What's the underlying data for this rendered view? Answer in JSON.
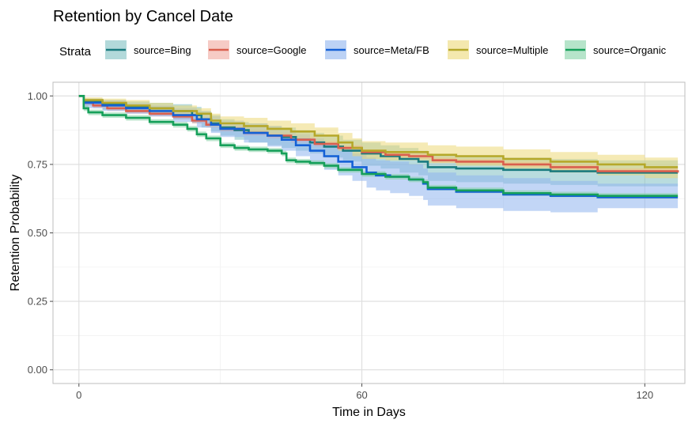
{
  "chart_data": {
    "type": "line",
    "step": true,
    "title": "Retention by Cancel Date",
    "xlabel": "Time in Days",
    "ylabel": "Retention Probability",
    "xlim": [
      -5.5,
      128.5
    ],
    "ylim": [
      -0.05,
      1.05
    ],
    "xticks": [
      0,
      60,
      120
    ],
    "yticks": [
      0.0,
      0.25,
      0.5,
      0.75,
      1.0
    ],
    "ytick_labels": [
      "0.00",
      "0.25",
      "0.50",
      "0.75",
      "1.00"
    ],
    "grid": true,
    "legend": {
      "title": "Strata",
      "position": "top"
    },
    "series": [
      {
        "name": "source=Bing",
        "color": "#1a7b7f",
        "band_color": "#7fbfc2",
        "x": [
          0,
          1,
          5,
          10,
          15,
          20,
          24,
          26,
          28,
          30,
          33,
          36,
          40,
          43,
          46,
          49,
          52,
          56,
          60,
          64,
          68,
          72,
          74,
          80,
          90,
          100,
          110,
          127
        ],
        "y": [
          1.0,
          0.98,
          0.97,
          0.96,
          0.955,
          0.945,
          0.93,
          0.915,
          0.9,
          0.885,
          0.875,
          0.865,
          0.855,
          0.85,
          0.84,
          0.83,
          0.815,
          0.8,
          0.79,
          0.78,
          0.77,
          0.76,
          0.74,
          0.735,
          0.73,
          0.725,
          0.72,
          0.72
        ],
        "lower": [
          1.0,
          0.965,
          0.95,
          0.94,
          0.93,
          0.915,
          0.9,
          0.885,
          0.87,
          0.855,
          0.84,
          0.83,
          0.82,
          0.81,
          0.8,
          0.79,
          0.775,
          0.76,
          0.745,
          0.735,
          0.72,
          0.71,
          0.69,
          0.685,
          0.68,
          0.675,
          0.67,
          0.67
        ],
        "upper": [
          1.0,
          0.99,
          0.985,
          0.98,
          0.975,
          0.97,
          0.96,
          0.945,
          0.93,
          0.915,
          0.905,
          0.9,
          0.89,
          0.885,
          0.875,
          0.865,
          0.855,
          0.84,
          0.83,
          0.82,
          0.81,
          0.8,
          0.785,
          0.78,
          0.775,
          0.77,
          0.765,
          0.765
        ]
      },
      {
        "name": "source=Google",
        "color": "#d95f4e",
        "band_color": "#f0a89e",
        "x": [
          0,
          1,
          3,
          6,
          10,
          15,
          20,
          24,
          27,
          30,
          35,
          40,
          45,
          50,
          55,
          60,
          65,
          70,
          75,
          80,
          90,
          100,
          110,
          127
        ],
        "y": [
          1.0,
          0.975,
          0.965,
          0.955,
          0.945,
          0.935,
          0.925,
          0.91,
          0.895,
          0.88,
          0.865,
          0.855,
          0.84,
          0.825,
          0.81,
          0.795,
          0.785,
          0.78,
          0.765,
          0.76,
          0.75,
          0.74,
          0.725,
          0.72
        ],
        "lower": [
          1.0,
          0.965,
          0.955,
          0.945,
          0.935,
          0.925,
          0.915,
          0.9,
          0.885,
          0.87,
          0.855,
          0.845,
          0.83,
          0.815,
          0.8,
          0.785,
          0.775,
          0.77,
          0.755,
          0.75,
          0.74,
          0.73,
          0.715,
          0.71
        ],
        "upper": [
          1.0,
          0.985,
          0.975,
          0.965,
          0.955,
          0.945,
          0.935,
          0.92,
          0.905,
          0.89,
          0.875,
          0.865,
          0.85,
          0.835,
          0.82,
          0.805,
          0.795,
          0.79,
          0.775,
          0.77,
          0.76,
          0.75,
          0.735,
          0.73
        ]
      },
      {
        "name": "source=Meta/FB",
        "color": "#1460d6",
        "band_color": "#8fb4ef",
        "x": [
          0,
          1,
          5,
          10,
          15,
          20,
          25,
          28,
          30,
          35,
          40,
          43,
          46,
          49,
          52,
          55,
          58,
          61,
          63,
          66,
          70,
          73,
          74,
          80,
          90,
          100,
          110,
          127
        ],
        "y": [
          1.0,
          0.975,
          0.965,
          0.955,
          0.945,
          0.93,
          0.915,
          0.895,
          0.88,
          0.865,
          0.855,
          0.84,
          0.82,
          0.8,
          0.78,
          0.76,
          0.74,
          0.72,
          0.71,
          0.705,
          0.695,
          0.68,
          0.66,
          0.65,
          0.64,
          0.635,
          0.63,
          0.63
        ],
        "lower": [
          1.0,
          0.955,
          0.945,
          0.935,
          0.925,
          0.905,
          0.885,
          0.865,
          0.85,
          0.83,
          0.815,
          0.8,
          0.78,
          0.755,
          0.73,
          0.71,
          0.69,
          0.665,
          0.655,
          0.645,
          0.635,
          0.62,
          0.6,
          0.59,
          0.58,
          0.575,
          0.59,
          0.59
        ],
        "upper": [
          1.0,
          0.99,
          0.985,
          0.975,
          0.965,
          0.955,
          0.945,
          0.925,
          0.91,
          0.9,
          0.89,
          0.875,
          0.86,
          0.845,
          0.83,
          0.81,
          0.79,
          0.775,
          0.765,
          0.76,
          0.75,
          0.735,
          0.72,
          0.71,
          0.7,
          0.69,
          0.68,
          0.68
        ]
      },
      {
        "name": "source=Multiple",
        "color": "#b5a82a",
        "band_color": "#ecd978",
        "x": [
          0,
          1,
          5,
          10,
          15,
          20,
          25,
          28,
          30,
          35,
          40,
          45,
          50,
          55,
          58,
          60,
          65,
          74,
          80,
          90,
          100,
          110,
          120,
          127
        ],
        "y": [
          1.0,
          0.985,
          0.975,
          0.965,
          0.955,
          0.945,
          0.935,
          0.91,
          0.9,
          0.89,
          0.88,
          0.87,
          0.855,
          0.83,
          0.81,
          0.8,
          0.795,
          0.785,
          0.78,
          0.77,
          0.76,
          0.75,
          0.74,
          0.74
        ],
        "lower": [
          1.0,
          0.975,
          0.96,
          0.95,
          0.94,
          0.93,
          0.915,
          0.89,
          0.875,
          0.865,
          0.855,
          0.845,
          0.825,
          0.8,
          0.78,
          0.77,
          0.765,
          0.755,
          0.745,
          0.735,
          0.72,
          0.71,
          0.7,
          0.7
        ],
        "upper": [
          1.0,
          0.995,
          0.99,
          0.985,
          0.975,
          0.965,
          0.955,
          0.935,
          0.925,
          0.92,
          0.91,
          0.9,
          0.885,
          0.865,
          0.845,
          0.835,
          0.83,
          0.82,
          0.815,
          0.805,
          0.795,
          0.785,
          0.775,
          0.775
        ]
      },
      {
        "name": "source=Organic",
        "color": "#16a05a",
        "band_color": "#86d2a6",
        "x": [
          0,
          1,
          2,
          5,
          10,
          15,
          20,
          23,
          25,
          27,
          30,
          33,
          36,
          40,
          43,
          44,
          46,
          49,
          52,
          55,
          60,
          65,
          70,
          73,
          74,
          80,
          90,
          100,
          110,
          127
        ],
        "y": [
          1.0,
          0.955,
          0.94,
          0.93,
          0.92,
          0.905,
          0.895,
          0.88,
          0.86,
          0.845,
          0.82,
          0.81,
          0.805,
          0.8,
          0.79,
          0.765,
          0.76,
          0.755,
          0.745,
          0.73,
          0.715,
          0.705,
          0.695,
          0.685,
          0.665,
          0.655,
          0.645,
          0.64,
          0.635,
          0.635
        ],
        "lower": [
          1.0,
          0.945,
          0.93,
          0.92,
          0.91,
          0.895,
          0.885,
          0.87,
          0.85,
          0.835,
          0.81,
          0.8,
          0.795,
          0.79,
          0.78,
          0.755,
          0.75,
          0.745,
          0.735,
          0.72,
          0.705,
          0.695,
          0.685,
          0.675,
          0.655,
          0.645,
          0.635,
          0.63,
          0.625,
          0.625
        ],
        "upper": [
          1.0,
          0.965,
          0.95,
          0.94,
          0.93,
          0.915,
          0.905,
          0.89,
          0.87,
          0.855,
          0.83,
          0.82,
          0.815,
          0.81,
          0.8,
          0.775,
          0.77,
          0.765,
          0.755,
          0.74,
          0.725,
          0.715,
          0.705,
          0.695,
          0.675,
          0.665,
          0.655,
          0.65,
          0.645,
          0.645
        ]
      }
    ]
  }
}
